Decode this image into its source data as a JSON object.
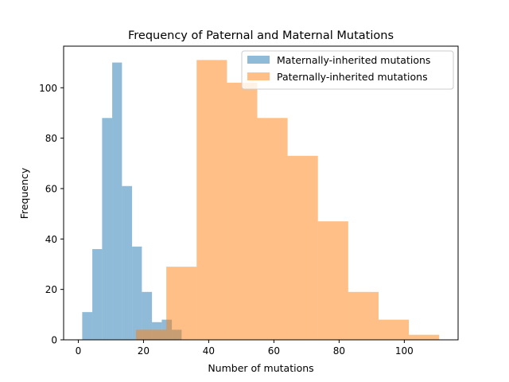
{
  "chart_data": {
    "type": "histogram",
    "title": "Frequency of Paternal and Maternal Mutations",
    "xlabel": "Number of mutations",
    "ylabel": "Frequency",
    "xlim": [
      -4.5,
      116.5
    ],
    "ylim": [
      0,
      116.5
    ],
    "x_ticks": [
      0,
      20,
      40,
      60,
      80,
      100
    ],
    "y_ticks": [
      0,
      20,
      40,
      60,
      80,
      100
    ],
    "grid": false,
    "legend_position": "upper right",
    "series": [
      {
        "name": "Maternally-inherited mutations",
        "color": "#1f77b4",
        "alpha": 0.5,
        "bin_edges": [
          1.2,
          4.3,
          7.3,
          10.4,
          13.4,
          16.5,
          19.5,
          22.6,
          25.6,
          28.7,
          31.7
        ],
        "values": [
          11,
          36,
          88,
          110,
          61,
          37,
          19,
          7,
          8,
          4
        ]
      },
      {
        "name": "Paternally-inherited mutations",
        "color": "#ff7f0e",
        "alpha": 0.5,
        "bin_edges": [
          17.7,
          27.0,
          36.3,
          45.6,
          54.9,
          64.2,
          73.5,
          82.8,
          92.1,
          101.4,
          110.7
        ],
        "values": [
          4,
          29,
          111,
          102,
          88,
          73,
          47,
          19,
          8,
          2
        ]
      }
    ]
  }
}
